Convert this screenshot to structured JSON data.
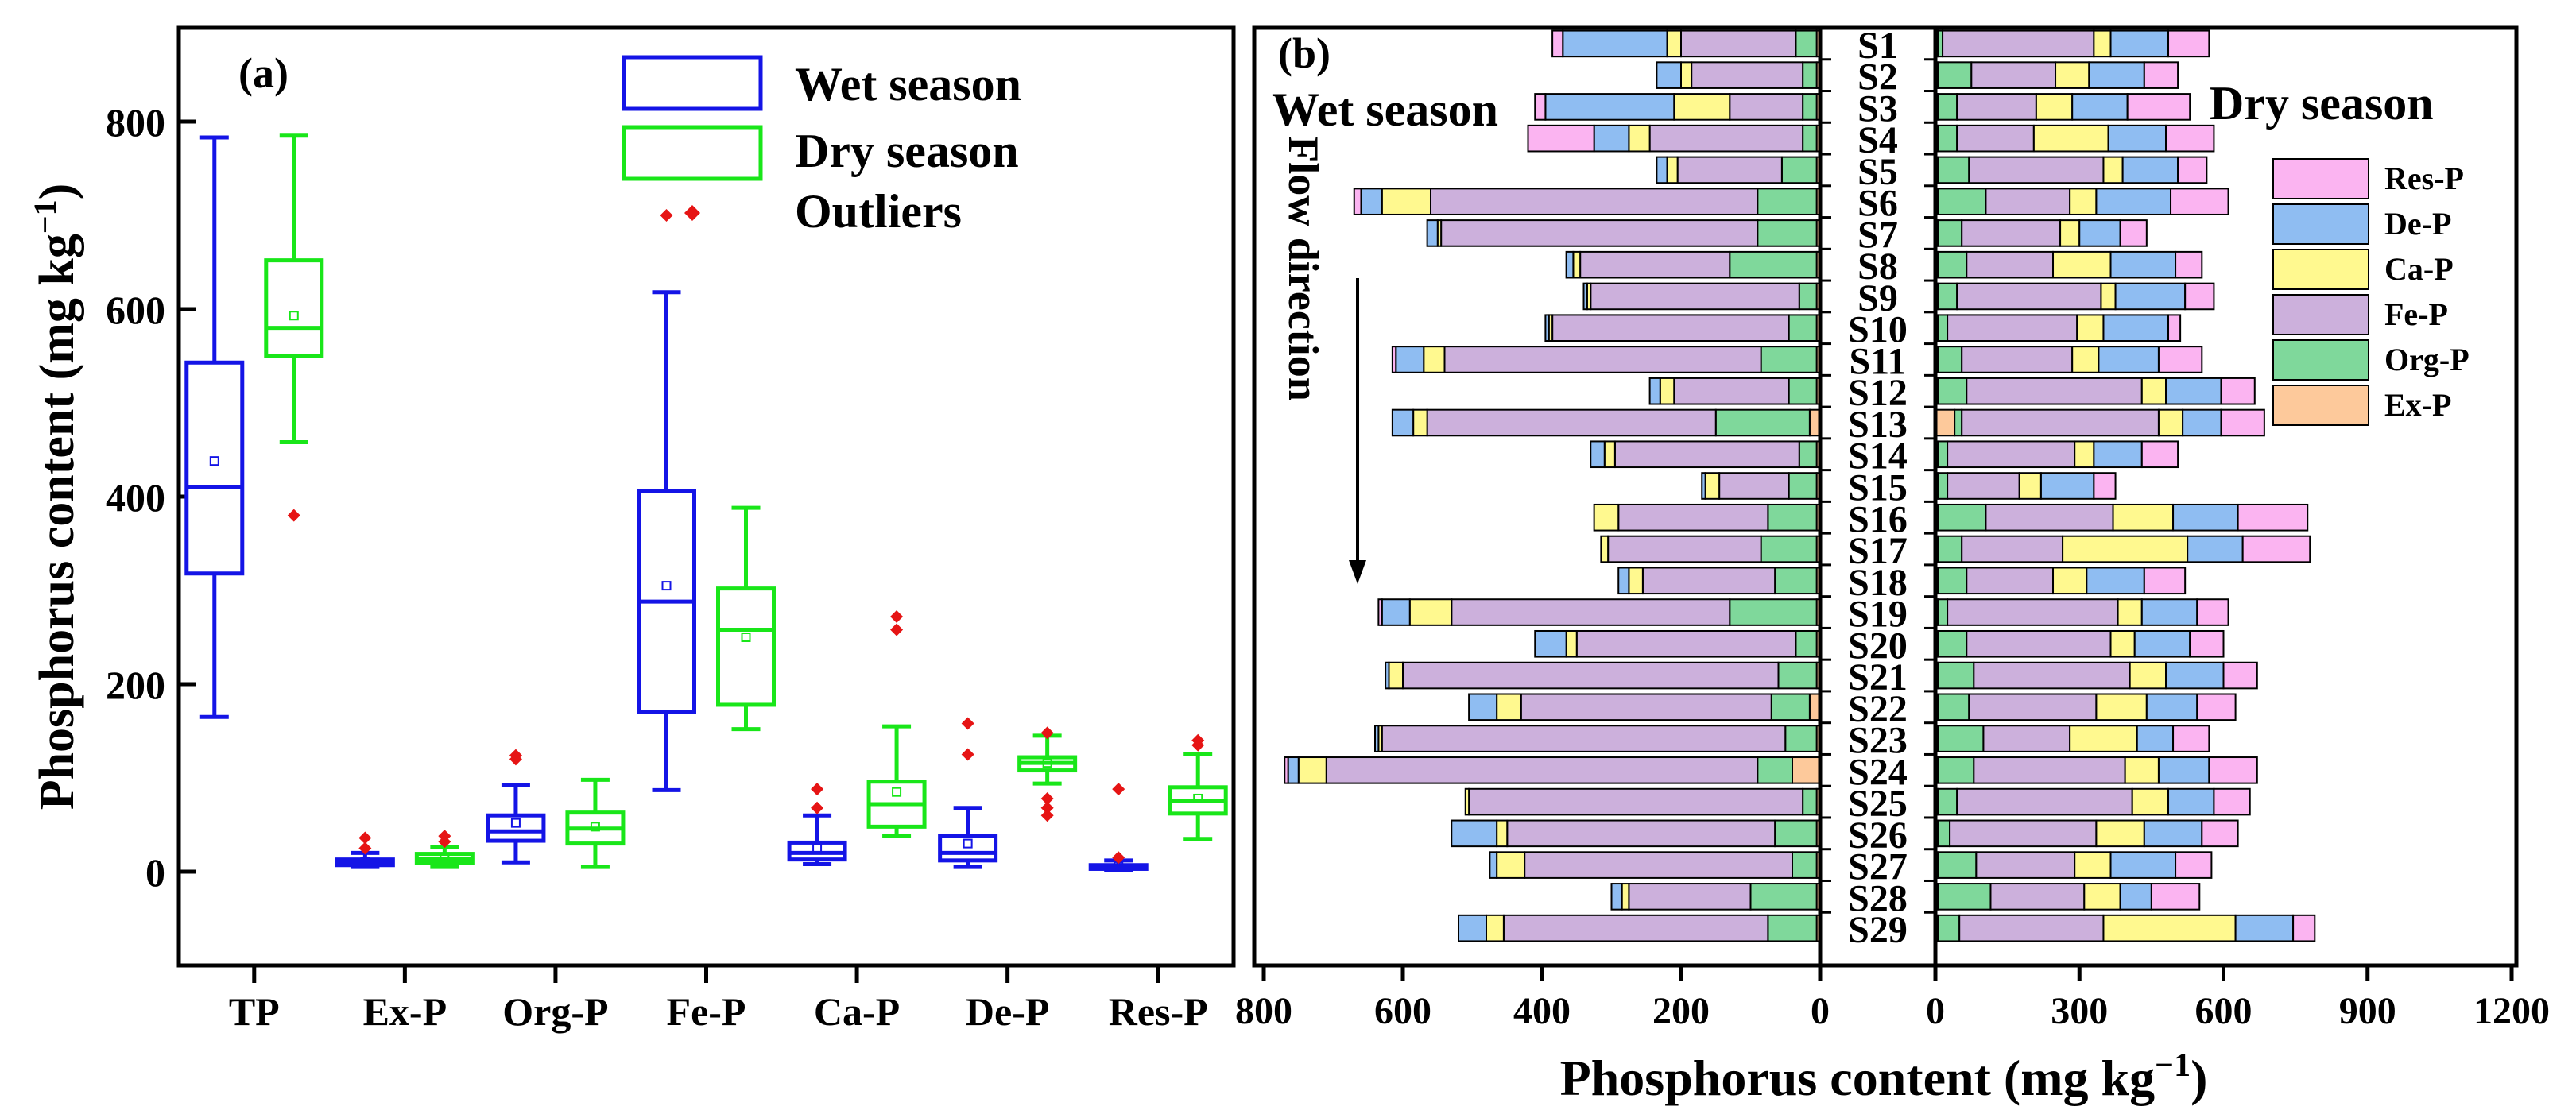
{
  "colors": {
    "wet": "#1414e6",
    "dry": "#19e619",
    "outlier": "#e61414",
    "Ex-P": "#fdc99b",
    "Org-P": "#7fd89b",
    "Fe-P": "#ccb0dc",
    "Ca-P": "#fff98f",
    "De-P": "#8fbdf2",
    "Res-P": "#fbb4f1"
  },
  "chart_data": [
    {
      "id": "a",
      "type": "boxplot",
      "panel_label": "(a)",
      "ylabel": "Phosphorus content (mg kg",
      "ylabel_sup": "−1",
      "ylabel_close": ")",
      "ylim": [
        -100,
        900
      ],
      "yticks": [
        0,
        200,
        400,
        600,
        800
      ],
      "ytick_labels": [
        "0",
        "200",
        "400",
        "600",
        "800"
      ],
      "categories": [
        "TP",
        "Ex-P",
        "Org-P",
        "Fe-P",
        "Ca-P",
        "De-P",
        "Res-P"
      ],
      "legend": {
        "wet": "Wet season",
        "dry": "Dry season",
        "outliers": "Outliers"
      },
      "series": [
        {
          "name": "Wet season",
          "boxes": [
            {
              "min": 165,
              "q1": 318,
              "median": 410,
              "q3": 543,
              "max": 783,
              "mean": 438,
              "outliers": []
            },
            {
              "min": 5,
              "q1": 7,
              "median": 10,
              "q3": 13,
              "max": 20,
              "mean": 11,
              "outliers": [
                25,
                36
              ]
            },
            {
              "min": 10,
              "q1": 33,
              "median": 43,
              "q3": 60,
              "max": 92,
              "mean": 52,
              "outliers": [
                120,
                124
              ]
            },
            {
              "min": 87,
              "q1": 170,
              "median": 288,
              "q3": 406,
              "max": 618,
              "mean": 305,
              "outliers": [
                700
              ]
            },
            {
              "min": 8,
              "q1": 13,
              "median": 20,
              "q3": 31,
              "max": 60,
              "mean": 25,
              "outliers": [
                68,
                88
              ]
            },
            {
              "min": 5,
              "q1": 12,
              "median": 20,
              "q3": 38,
              "max": 68,
              "mean": 30,
              "outliers": [
                125,
                158
              ]
            },
            {
              "min": 2,
              "q1": 3,
              "median": 5,
              "q3": 7,
              "max": 12,
              "mean": 6,
              "outliers": [
                15,
                88
              ]
            }
          ]
        },
        {
          "name": "Dry season",
          "boxes": [
            {
              "min": 458,
              "q1": 550,
              "median": 580,
              "q3": 652,
              "max": 785,
              "mean": 593,
              "outliers": [
                380
              ]
            },
            {
              "min": 5,
              "q1": 9,
              "median": 14,
              "q3": 19,
              "max": 26,
              "mean": 14,
              "outliers": [
                32,
                38
              ]
            },
            {
              "min": 5,
              "q1": 30,
              "median": 46,
              "q3": 63,
              "max": 98,
              "mean": 48,
              "outliers": []
            },
            {
              "min": 152,
              "q1": 178,
              "median": 258,
              "q3": 302,
              "max": 388,
              "mean": 250,
              "outliers": []
            },
            {
              "min": 38,
              "q1": 48,
              "median": 72,
              "q3": 96,
              "max": 155,
              "mean": 85,
              "outliers": [
                258,
                272
              ]
            },
            {
              "min": 94,
              "q1": 108,
              "median": 116,
              "q3": 122,
              "max": 145,
              "mean": 116,
              "outliers": [
                60,
                68,
                78,
                148
              ]
            },
            {
              "min": 35,
              "q1": 62,
              "median": 75,
              "q3": 90,
              "max": 125,
              "mean": 78,
              "outliers": [
                135,
                140
              ]
            }
          ]
        }
      ]
    },
    {
      "id": "b",
      "type": "stacked-bar-horizontal",
      "panel_label": "(b)",
      "wet_title": "Wet season",
      "dry_title": "Dry season",
      "flow_label": "Flow direction",
      "xlabel": "Phosphorus content (mg kg",
      "xlabel_sup": "−1",
      "xlabel_close": ")",
      "wet_xlim": [
        800,
        0
      ],
      "dry_xlim": [
        0,
        1200
      ],
      "wet_ticks": [
        800,
        600,
        400,
        200,
        0
      ],
      "wet_tick_labels": [
        "800",
        "600",
        "400",
        "200",
        "0"
      ],
      "dry_ticks": [
        0,
        300,
        600,
        900,
        1200
      ],
      "dry_tick_labels": [
        "0",
        "300",
        "600",
        "900",
        "1200"
      ],
      "fractions": [
        "Ex-P",
        "Org-P",
        "Fe-P",
        "Ca-P",
        "De-P",
        "Res-P"
      ],
      "legend_order": [
        "Res-P",
        "De-P",
        "Ca-P",
        "Fe-P",
        "Org-P",
        "Ex-P"
      ],
      "sites": [
        "S1",
        "S2",
        "S3",
        "S4",
        "S5",
        "S6",
        "S7",
        "S8",
        "S9",
        "S10",
        "S11",
        "S12",
        "S13",
        "S14",
        "S15",
        "S16",
        "S17",
        "S18",
        "S19",
        "S20",
        "S21",
        "S22",
        "S23",
        "S24",
        "S25",
        "S26",
        "S27",
        "S28",
        "S29"
      ],
      "wet": [
        [
          5,
          30,
          165,
          20,
          150,
          15
        ],
        [
          5,
          20,
          160,
          15,
          35,
          0
        ],
        [
          5,
          20,
          105,
          80,
          185,
          15
        ],
        [
          5,
          20,
          220,
          30,
          50,
          95
        ],
        [
          5,
          50,
          150,
          15,
          15,
          0
        ],
        [
          5,
          85,
          470,
          70,
          30,
          10
        ],
        [
          5,
          85,
          455,
          5,
          15,
          0
        ],
        [
          5,
          125,
          215,
          10,
          10,
          0
        ],
        [
          5,
          25,
          300,
          5,
          5,
          0
        ],
        [
          5,
          40,
          340,
          5,
          5,
          0
        ],
        [
          5,
          80,
          455,
          30,
          40,
          5
        ],
        [
          5,
          40,
          165,
          20,
          15,
          0
        ],
        [
          15,
          135,
          415,
          20,
          30,
          0
        ],
        [
          5,
          25,
          265,
          15,
          20,
          0
        ],
        [
          5,
          40,
          100,
          20,
          5,
          0
        ],
        [
          5,
          70,
          215,
          35,
          0,
          0
        ],
        [
          5,
          80,
          220,
          10,
          0,
          0
        ],
        [
          5,
          60,
          190,
          20,
          15,
          0
        ],
        [
          5,
          125,
          400,
          60,
          40,
          5
        ],
        [
          5,
          30,
          315,
          15,
          45,
          0
        ],
        [
          5,
          55,
          540,
          20,
          5,
          0
        ],
        [
          15,
          55,
          360,
          35,
          40,
          0
        ],
        [
          5,
          45,
          580,
          5,
          5,
          0
        ],
        [
          40,
          50,
          620,
          40,
          15,
          5
        ],
        [
          5,
          20,
          480,
          5,
          0,
          0
        ],
        [
          5,
          60,
          385,
          15,
          65,
          0
        ],
        [
          5,
          35,
          385,
          40,
          10,
          0
        ],
        [
          5,
          95,
          175,
          10,
          15,
          0
        ],
        [
          5,
          70,
          380,
          25,
          40,
          0
        ]
      ],
      "dry": [
        [
          5,
          10,
          315,
          35,
          120,
          85
        ],
        [
          5,
          70,
          175,
          70,
          115,
          70
        ],
        [
          5,
          40,
          165,
          75,
          115,
          130
        ],
        [
          5,
          40,
          160,
          155,
          120,
          100
        ],
        [
          5,
          65,
          280,
          40,
          115,
          60
        ],
        [
          5,
          100,
          175,
          55,
          155,
          120
        ],
        [
          5,
          50,
          205,
          40,
          85,
          55
        ],
        [
          5,
          60,
          180,
          120,
          135,
          55
        ],
        [
          5,
          40,
          300,
          30,
          145,
          60
        ],
        [
          5,
          20,
          270,
          55,
          135,
          25
        ],
        [
          5,
          50,
          230,
          55,
          125,
          90
        ],
        [
          5,
          60,
          365,
          50,
          115,
          70
        ],
        [
          40,
          15,
          410,
          50,
          80,
          90
        ],
        [
          5,
          20,
          265,
          40,
          100,
          75
        ],
        [
          5,
          20,
          150,
          45,
          110,
          45
        ],
        [
          5,
          100,
          265,
          125,
          135,
          145
        ],
        [
          5,
          50,
          210,
          260,
          115,
          140
        ],
        [
          5,
          60,
          180,
          70,
          120,
          85
        ],
        [
          5,
          20,
          355,
          50,
          115,
          65
        ],
        [
          5,
          60,
          300,
          50,
          115,
          70
        ],
        [
          5,
          75,
          325,
          75,
          120,
          70
        ],
        [
          5,
          65,
          265,
          105,
          105,
          80
        ],
        [
          5,
          95,
          180,
          140,
          75,
          75
        ],
        [
          5,
          75,
          315,
          70,
          105,
          100
        ],
        [
          5,
          40,
          365,
          75,
          95,
          75
        ],
        [
          5,
          25,
          305,
          100,
          120,
          75
        ],
        [
          5,
          80,
          205,
          75,
          135,
          75
        ],
        [
          5,
          110,
          195,
          75,
          65,
          100
        ],
        [
          5,
          45,
          300,
          275,
          120,
          45
        ]
      ]
    }
  ]
}
